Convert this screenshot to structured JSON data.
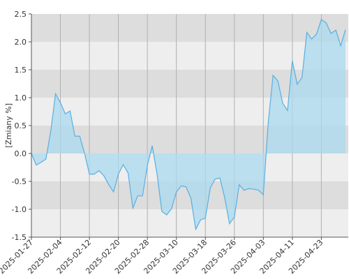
{
  "chart_data": {
    "type": "area",
    "y_label": "[Zmiany %]",
    "categories": [
      "2025-01-27",
      null,
      null,
      null,
      null,
      null,
      "2025-02-04",
      null,
      null,
      null,
      null,
      null,
      "2025-02-12",
      null,
      null,
      null,
      null,
      null,
      "2025-02-20",
      null,
      null,
      null,
      null,
      null,
      "2025-02-28",
      null,
      null,
      null,
      null,
      null,
      "2025-03-10",
      null,
      null,
      null,
      null,
      null,
      "2025-03-18",
      null,
      null,
      null,
      null,
      null,
      "2025-03-26",
      null,
      null,
      null,
      null,
      null,
      "2025-04-03",
      null,
      null,
      null,
      null,
      null,
      "2025-04-11",
      null,
      null,
      null,
      null,
      null,
      "2025-04-23",
      null,
      null,
      null,
      null,
      null
    ],
    "values": [
      0,
      -0.21,
      -0.16,
      -0.1,
      0.4,
      1.07,
      0.91,
      0.71,
      0.76,
      0.31,
      0.31,
      0,
      -0.37,
      -0.37,
      -0.31,
      -0.4,
      -0.56,
      -0.69,
      -0.37,
      -0.2,
      -0.35,
      -0.98,
      -0.76,
      -0.76,
      -0.21,
      0.14,
      -0.37,
      -1.04,
      -1.1,
      -0.99,
      -0.69,
      -0.58,
      -0.6,
      -0.8,
      -1.36,
      -1.19,
      -1.16,
      -0.62,
      -0.46,
      -0.44,
      -0.79,
      -1.26,
      -1.14,
      -0.56,
      -0.66,
      -0.63,
      -0.64,
      -0.66,
      -0.74,
      0.54,
      1.4,
      1.3,
      0.9,
      0.77,
      1.66,
      1.24,
      1.36,
      2.17,
      2.05,
      2.14,
      2.4,
      2.34,
      2.15,
      2.21,
      1.93,
      2.22
    ],
    "color": "#5aaee0",
    "fill": "#a9d9ee",
    "ylim": [
      -1.5,
      2.5
    ],
    "yticks": [
      -1.5,
      {
        "value": -1,
        "label": "-1.0"
      },
      -0.5,
      {
        "value": 0,
        "label": "0.0"
      },
      0.5,
      {
        "value": 1,
        "label": "1.0"
      },
      1.5,
      {
        "value": 2,
        "label": "2.0"
      },
      2.5
    ],
    "grid": true
  }
}
